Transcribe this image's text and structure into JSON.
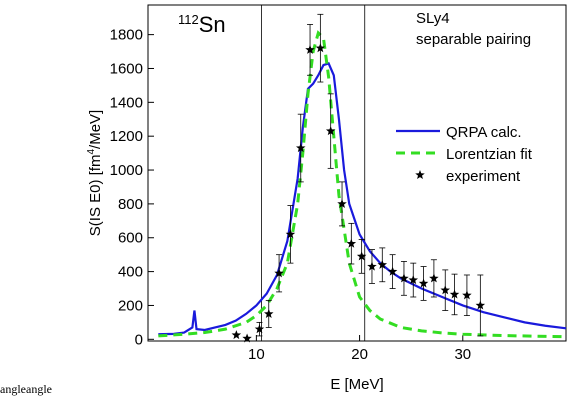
{
  "chart_data": {
    "type": "line",
    "title_mass": "112",
    "title": "Sn",
    "annotations": [
      "SLy4",
      "separable pairing"
    ],
    "xlabel": "E [MeV]",
    "ylabel_parts": [
      "S(IS E0) [fm",
      "4",
      "/MeV]"
    ],
    "xlim": [
      -0.5,
      40
    ],
    "ylim": [
      -10,
      1975
    ],
    "xticks": [
      10,
      20,
      30
    ],
    "yticks": [
      0,
      200,
      400,
      600,
      800,
      1000,
      1200,
      1400,
      1600,
      1800
    ],
    "vlines": [
      10.5,
      20.5
    ],
    "series": [
      {
        "name": "QRPA calc.",
        "color": "#1a1adc",
        "style": "solid",
        "x": [
          0.5,
          2,
          3,
          3.8,
          4.0,
          4.2,
          5,
          6,
          7,
          8,
          9,
          10,
          11,
          12,
          13,
          14,
          14.5,
          15,
          15.5,
          16,
          16.5,
          17,
          17.5,
          18,
          18.5,
          19,
          20,
          21,
          22,
          23,
          24,
          26,
          28,
          30,
          32,
          34,
          36,
          38,
          40
        ],
        "values": [
          30,
          32,
          40,
          70,
          170,
          60,
          55,
          70,
          85,
          110,
          150,
          200,
          270,
          380,
          580,
          950,
          1250,
          1480,
          1510,
          1560,
          1620,
          1630,
          1560,
          1300,
          1000,
          800,
          620,
          520,
          450,
          400,
          360,
          300,
          250,
          200,
          160,
          130,
          100,
          80,
          65
        ]
      },
      {
        "name": "Lorentzian fit",
        "color": "#33dd22",
        "style": "dashed",
        "x": [
          0.5,
          3,
          5,
          7,
          9,
          10,
          11,
          12,
          13,
          14,
          14.5,
          15,
          15.5,
          16,
          16.5,
          17,
          17.5,
          18,
          19,
          20,
          21,
          22,
          24,
          26,
          28,
          30,
          34,
          40
        ],
        "values": [
          20,
          30,
          40,
          60,
          100,
          140,
          200,
          300,
          450,
          800,
          1100,
          1450,
          1700,
          1810,
          1780,
          1550,
          1200,
          850,
          450,
          250,
          170,
          120,
          70,
          50,
          38,
          30,
          22,
          15
        ]
      },
      {
        "name": "experiment",
        "color": "#000000",
        "style": "star",
        "x": [
          8.06,
          9.1,
          10.3,
          11.2,
          12.2,
          13.3,
          14.3,
          15.2,
          16.2,
          17.2,
          18.3,
          19.2,
          20.2,
          21.2,
          22.2,
          23.2,
          24.3,
          25.2,
          26.2,
          27.2,
          28.3,
          29.2,
          30.4,
          31.7
        ],
        "values": [
          25,
          5,
          60,
          150,
          390,
          620,
          1130,
          1710,
          1720,
          1230,
          800,
          565,
          490,
          430,
          440,
          400,
          360,
          350,
          330,
          360,
          290,
          265,
          260,
          200
        ],
        "errors": [
          null,
          null,
          40,
          80,
          110,
          170,
          200,
          150,
          200,
          220,
          130,
          120,
          100,
          100,
          100,
          100,
          100,
          100,
          100,
          110,
          120,
          120,
          120,
          180
        ]
      }
    ]
  },
  "footer": "angleangle"
}
